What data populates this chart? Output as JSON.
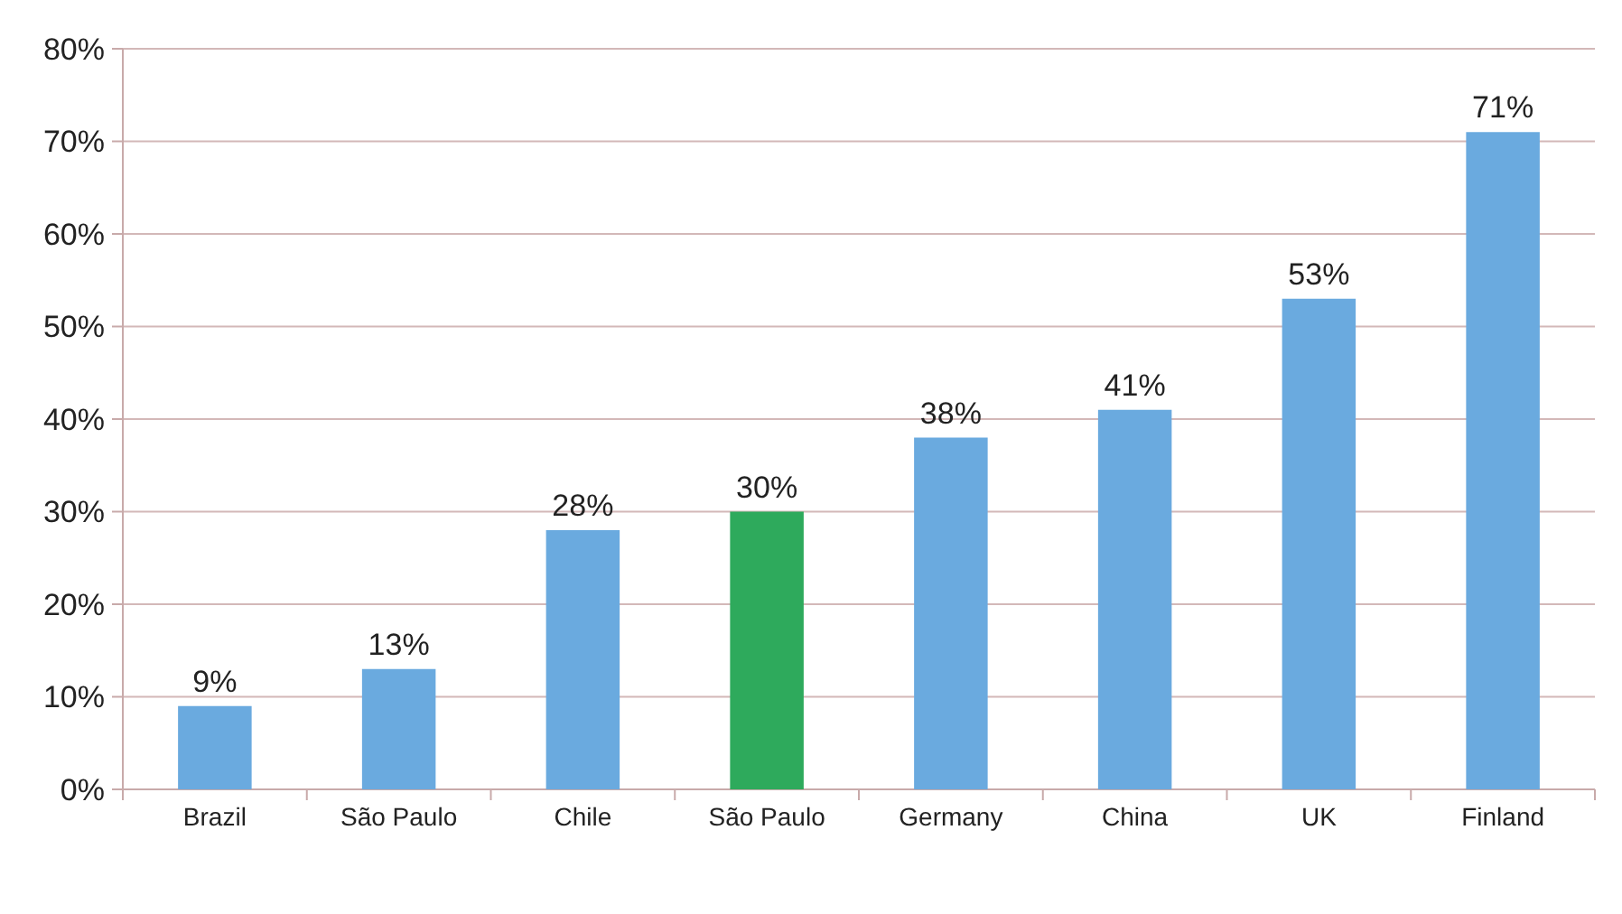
{
  "chart_data": {
    "type": "bar",
    "categories": [
      "Brazil",
      "São Paulo",
      "Chile",
      "São Paulo",
      "Germany",
      "China",
      "UK",
      "Finland"
    ],
    "values": [
      9,
      13,
      28,
      30,
      38,
      41,
      53,
      71
    ],
    "colors": [
      "#6aaadf",
      "#6aaadf",
      "#6aaadf",
      "#2eaa5c",
      "#6aaadf",
      "#6aaadf",
      "#6aaadf",
      "#6aaadf"
    ],
    "value_labels": [
      "9%",
      "13%",
      "28%",
      "30%",
      "38%",
      "41%",
      "53%",
      "71%"
    ],
    "ylim": [
      0,
      80
    ],
    "yticks": [
      {
        "value": 0,
        "label": "0%"
      },
      {
        "value": 10,
        "label": "10%"
      },
      {
        "value": 20,
        "label": "20%"
      },
      {
        "value": 30,
        "label": "30%"
      },
      {
        "value": 40,
        "label": "40%"
      },
      {
        "value": 50,
        "label": "50%"
      },
      {
        "value": 60,
        "label": "60%"
      },
      {
        "value": 70,
        "label": "70%"
      },
      {
        "value": 80,
        "label": "80%"
      }
    ],
    "grid": "y"
  }
}
